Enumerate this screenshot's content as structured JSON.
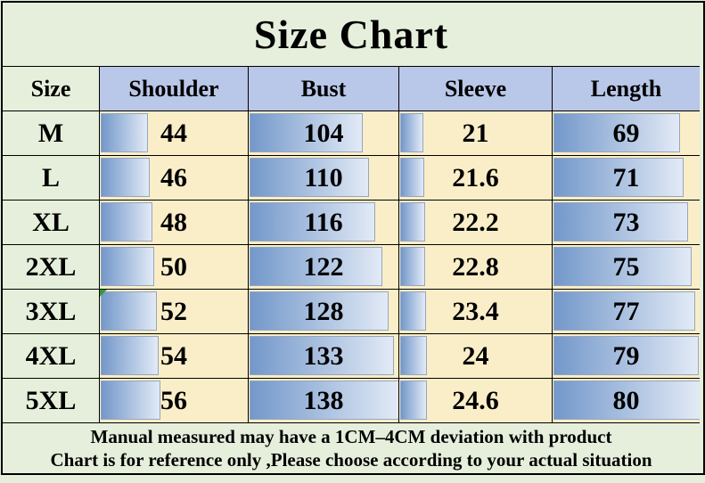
{
  "chart_data": {
    "type": "table",
    "title": "Size Chart",
    "columns": [
      {
        "key": "size",
        "label": "Size"
      },
      {
        "key": "shoulder",
        "label": "Shoulder"
      },
      {
        "key": "bust",
        "label": "Bust"
      },
      {
        "key": "sleeve",
        "label": "Sleeve"
      },
      {
        "key": "length",
        "label": "Length"
      }
    ],
    "bar_max": {
      "shoulder": 138,
      "bust": 138,
      "sleeve": 138,
      "length": 80
    },
    "rows": [
      {
        "size": "M",
        "shoulder": 44,
        "bust": 104,
        "sleeve": 21,
        "length": 69
      },
      {
        "size": "L",
        "shoulder": 46,
        "bust": 110,
        "sleeve": 21.6,
        "length": 71
      },
      {
        "size": "XL",
        "shoulder": 48,
        "bust": 116,
        "sleeve": 22.2,
        "length": 73
      },
      {
        "size": "2XL",
        "shoulder": 50,
        "bust": 122,
        "sleeve": 22.8,
        "length": 75
      },
      {
        "size": "3XL",
        "shoulder": 52,
        "bust": 128,
        "sleeve": 23.4,
        "length": 77
      },
      {
        "size": "4XL",
        "shoulder": 54,
        "bust": 133,
        "sleeve": 24,
        "length": 79
      },
      {
        "size": "5XL",
        "shoulder": 56,
        "bust": 138,
        "sleeve": 24.6,
        "length": 80
      }
    ]
  },
  "footer": {
    "line1": "Manual measured may have a 1CM–4CM deviation with product",
    "line2": "Chart is for reference only ,Please choose according to your actual situation"
  },
  "colors": {
    "page_green": "#e5efdb",
    "header_blue": "#b9c7e8",
    "cell_cream": "#faeec8",
    "bar_dark": "#7398ca",
    "bar_light": "#e2eaf6",
    "bar_border": "#96a5bf",
    "marker_green": "#2f9e2f",
    "grid_black": "#000000"
  }
}
